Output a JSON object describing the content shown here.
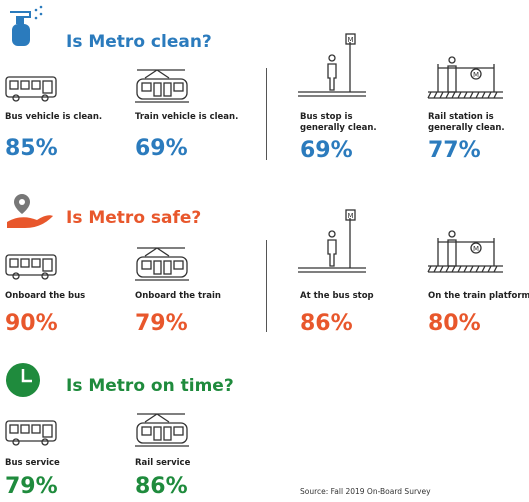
{
  "sections": [
    {
      "title": "Is Metro clean?",
      "items": [
        {
          "label": "Bus vehicle is clean.",
          "value": "85%"
        },
        {
          "label": "Train vehicle is clean.",
          "value": "69%"
        },
        {
          "label": "Bus stop is generally clean.",
          "value": "69%"
        },
        {
          "label": "Rail station is generally clean.",
          "value": "77%"
        }
      ]
    },
    {
      "title": "Is Metro safe?",
      "items": [
        {
          "label": "Onboard the bus",
          "value": "90%"
        },
        {
          "label": "Onboard the train",
          "value": "79%"
        },
        {
          "label": "At the bus stop",
          "value": "86%"
        },
        {
          "label": "On the train platform",
          "value": "80%"
        }
      ]
    },
    {
      "title": "Is Metro on time?",
      "items": [
        {
          "label": "Bus service",
          "value": "79%"
        },
        {
          "label": "Rail service",
          "value": "86%"
        }
      ]
    }
  ],
  "source": "Source: Fall 2019 On-Board Survey"
}
